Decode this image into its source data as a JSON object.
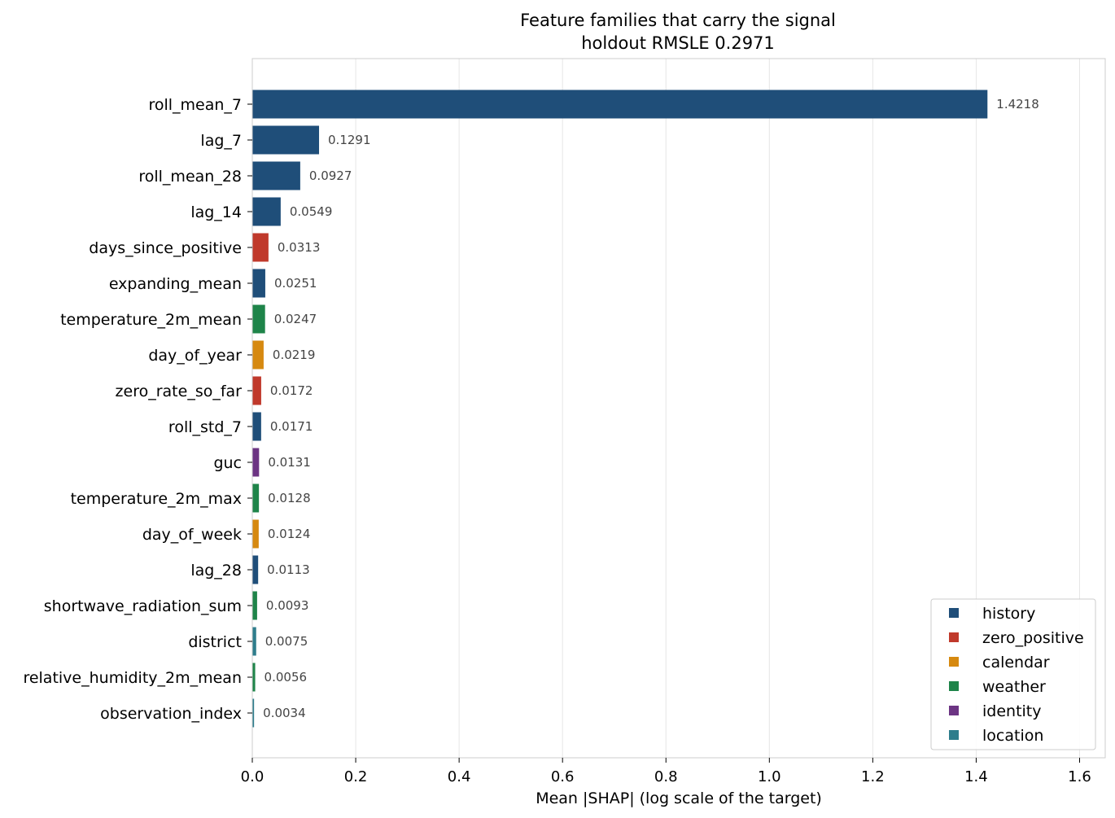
{
  "chart_data": {
    "type": "bar",
    "orientation": "horizontal",
    "title": "Feature families that carry the signal",
    "subtitle": "holdout RMSLE 0.2971",
    "xlabel": "Mean |SHAP| (log scale of the target)",
    "ylabel": "",
    "xlim": [
      0,
      1.65
    ],
    "xticks": [
      "0.0",
      "0.2",
      "0.4",
      "0.6",
      "0.8",
      "1.0",
      "1.2",
      "1.4",
      "1.6"
    ],
    "grid": "vertical",
    "legend_position": "bottom-right",
    "families": [
      {
        "name": "history",
        "color": "#1f4e79"
      },
      {
        "name": "zero_positive",
        "color": "#c0392b"
      },
      {
        "name": "calendar",
        "color": "#d68910"
      },
      {
        "name": "weather",
        "color": "#1e8449"
      },
      {
        "name": "identity",
        "color": "#6c3483"
      },
      {
        "name": "location",
        "color": "#2e7d8c"
      }
    ],
    "bars": [
      {
        "feature": "roll_mean_7",
        "value": 1.4218,
        "label": "1.4218",
        "family": "history"
      },
      {
        "feature": "lag_7",
        "value": 0.1291,
        "label": "0.1291",
        "family": "history"
      },
      {
        "feature": "roll_mean_28",
        "value": 0.0927,
        "label": "0.0927",
        "family": "history"
      },
      {
        "feature": "lag_14",
        "value": 0.0549,
        "label": "0.0549",
        "family": "history"
      },
      {
        "feature": "days_since_positive",
        "value": 0.0313,
        "label": "0.0313",
        "family": "zero_positive"
      },
      {
        "feature": "expanding_mean",
        "value": 0.0251,
        "label": "0.0251",
        "family": "history"
      },
      {
        "feature": "temperature_2m_mean",
        "value": 0.0247,
        "label": "0.0247",
        "family": "weather"
      },
      {
        "feature": "day_of_year",
        "value": 0.0219,
        "label": "0.0219",
        "family": "calendar"
      },
      {
        "feature": "zero_rate_so_far",
        "value": 0.0172,
        "label": "0.0172",
        "family": "zero_positive"
      },
      {
        "feature": "roll_std_7",
        "value": 0.0171,
        "label": "0.0171",
        "family": "history"
      },
      {
        "feature": "guc",
        "value": 0.0131,
        "label": "0.0131",
        "family": "identity"
      },
      {
        "feature": "temperature_2m_max",
        "value": 0.0128,
        "label": "0.0128",
        "family": "weather"
      },
      {
        "feature": "day_of_week",
        "value": 0.0124,
        "label": "0.0124",
        "family": "calendar"
      },
      {
        "feature": "lag_28",
        "value": 0.0113,
        "label": "0.0113",
        "family": "history"
      },
      {
        "feature": "shortwave_radiation_sum",
        "value": 0.0093,
        "label": "0.0093",
        "family": "weather"
      },
      {
        "feature": "district",
        "value": 0.0075,
        "label": "0.0075",
        "family": "location"
      },
      {
        "feature": "relative_humidity_2m_mean",
        "value": 0.0056,
        "label": "0.0056",
        "family": "weather"
      },
      {
        "feature": "observation_index",
        "value": 0.0034,
        "label": "0.0034",
        "family": "location"
      }
    ]
  }
}
